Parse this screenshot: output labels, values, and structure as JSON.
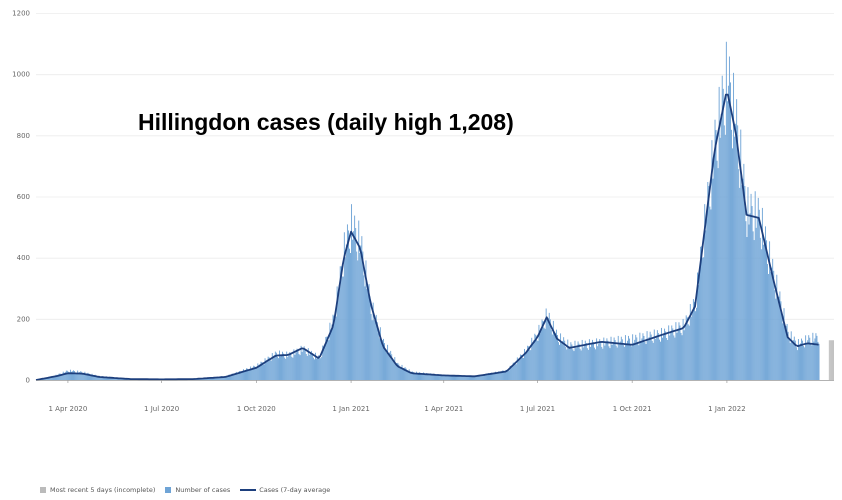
{
  "chart_data": {
    "type": "bar",
    "title": "Hillingdon cases (daily high 1,208)",
    "xlabel": "",
    "ylabel": "",
    "ylim": [
      0,
      1200
    ],
    "y_ticks": [
      0,
      200,
      400,
      600,
      800,
      1000,
      1200
    ],
    "x_range": [
      "2020-03-01",
      "2022-04-15"
    ],
    "x_ticks": [
      {
        "date": "2020-04-01",
        "label": "1 Apr 2020"
      },
      {
        "date": "2020-07-01",
        "label": "1 Jul 2020"
      },
      {
        "date": "2020-10-01",
        "label": "1 Oct 2020"
      },
      {
        "date": "2021-01-01",
        "label": "1 Jan 2021"
      },
      {
        "date": "2021-04-01",
        "label": "1 Apr 2021"
      },
      {
        "date": "2021-07-01",
        "label": "1 Jul 2021"
      },
      {
        "date": "2021-10-01",
        "label": "1 Oct 2021"
      },
      {
        "date": "2022-01-01",
        "label": "1 Jan 2022"
      }
    ],
    "grid": true,
    "legend_position": "bottom-left",
    "series": [
      {
        "name": "Number of cases",
        "kind": "bar",
        "color": "#6fa4d6",
        "points": [
          [
            "2020-03-01",
            0
          ],
          [
            "2020-03-20",
            15
          ],
          [
            "2020-04-01",
            30
          ],
          [
            "2020-04-15",
            25
          ],
          [
            "2020-05-01",
            12
          ],
          [
            "2020-06-01",
            4
          ],
          [
            "2020-07-01",
            2
          ],
          [
            "2020-08-01",
            3
          ],
          [
            "2020-09-01",
            12
          ],
          [
            "2020-10-01",
            45
          ],
          [
            "2020-10-20",
            85
          ],
          [
            "2020-11-01",
            80
          ],
          [
            "2020-11-15",
            100
          ],
          [
            "2020-12-01",
            70
          ],
          [
            "2020-12-15",
            200
          ],
          [
            "2020-12-25",
            420
          ],
          [
            "2021-01-01",
            500
          ],
          [
            "2021-01-10",
            440
          ],
          [
            "2021-01-20",
            240
          ],
          [
            "2021-02-01",
            120
          ],
          [
            "2021-02-15",
            50
          ],
          [
            "2021-03-01",
            25
          ],
          [
            "2021-04-01",
            15
          ],
          [
            "2021-05-01",
            12
          ],
          [
            "2021-06-01",
            30
          ],
          [
            "2021-06-20",
            95
          ],
          [
            "2021-07-01",
            150
          ],
          [
            "2021-07-10",
            210
          ],
          [
            "2021-07-20",
            140
          ],
          [
            "2021-08-01",
            110
          ],
          [
            "2021-09-01",
            120
          ],
          [
            "2021-10-01",
            130
          ],
          [
            "2021-11-01",
            150
          ],
          [
            "2021-11-20",
            175
          ],
          [
            "2021-12-01",
            250
          ],
          [
            "2021-12-10",
            500
          ],
          [
            "2021-12-20",
            760
          ],
          [
            "2022-01-01",
            980
          ],
          [
            "2022-01-10",
            820
          ],
          [
            "2022-01-20",
            550
          ],
          [
            "2022-02-01",
            530
          ],
          [
            "2022-02-15",
            340
          ],
          [
            "2022-03-01",
            150
          ],
          [
            "2022-03-10",
            115
          ],
          [
            "2022-03-20",
            130
          ],
          [
            "2022-04-01",
            140
          ]
        ]
      },
      {
        "name": "Cases (7-day average",
        "kind": "line",
        "color": "#1d3f7d",
        "points": [
          [
            "2020-03-01",
            0
          ],
          [
            "2020-03-20",
            12
          ],
          [
            "2020-04-01",
            22
          ],
          [
            "2020-04-15",
            21
          ],
          [
            "2020-05-01",
            10
          ],
          [
            "2020-06-01",
            3
          ],
          [
            "2020-07-01",
            2
          ],
          [
            "2020-08-01",
            3
          ],
          [
            "2020-09-01",
            10
          ],
          [
            "2020-10-01",
            40
          ],
          [
            "2020-10-20",
            80
          ],
          [
            "2020-11-01",
            82
          ],
          [
            "2020-11-15",
            105
          ],
          [
            "2020-12-01",
            70
          ],
          [
            "2020-12-15",
            180
          ],
          [
            "2020-12-25",
            400
          ],
          [
            "2021-01-01",
            485
          ],
          [
            "2021-01-10",
            430
          ],
          [
            "2021-01-20",
            250
          ],
          [
            "2021-02-01",
            110
          ],
          [
            "2021-02-15",
            45
          ],
          [
            "2021-03-01",
            22
          ],
          [
            "2021-04-01",
            15
          ],
          [
            "2021-05-01",
            12
          ],
          [
            "2021-06-01",
            28
          ],
          [
            "2021-06-20",
            90
          ],
          [
            "2021-07-01",
            140
          ],
          [
            "2021-07-10",
            205
          ],
          [
            "2021-07-20",
            135
          ],
          [
            "2021-08-01",
            105
          ],
          [
            "2021-09-01",
            125
          ],
          [
            "2021-10-01",
            115
          ],
          [
            "2021-11-01",
            150
          ],
          [
            "2021-11-20",
            170
          ],
          [
            "2021-12-01",
            240
          ],
          [
            "2021-12-10",
            480
          ],
          [
            "2021-12-20",
            750
          ],
          [
            "2022-01-01",
            950
          ],
          [
            "2022-01-10",
            800
          ],
          [
            "2022-01-20",
            540
          ],
          [
            "2022-02-01",
            530
          ],
          [
            "2022-02-15",
            330
          ],
          [
            "2022-03-01",
            140
          ],
          [
            "2022-03-10",
            110
          ],
          [
            "2022-03-20",
            120
          ],
          [
            "2022-04-01",
            115
          ]
        ]
      }
    ],
    "incomplete_series": {
      "name": "Most recent 5 days (incomplete)",
      "color": "#bbbbbb",
      "value": 130
    }
  }
}
